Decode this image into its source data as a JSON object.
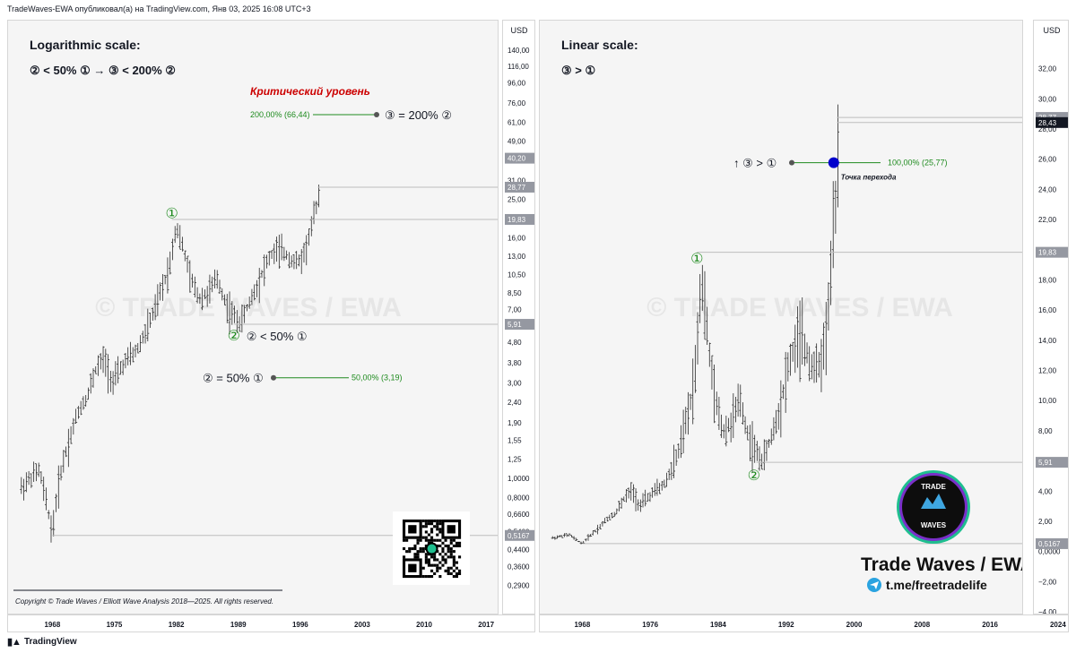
{
  "header": {
    "title": "TradeWaves-EWA опубликовал(а) на TradingView.com, Янв 03, 2025 16:08 UTC+3"
  },
  "footer": {
    "brand": "TradingView"
  },
  "watermark": "© TRADE WAVES / EWA",
  "copyright": "Copyright © Trade Waves / Elliott Wave Analysis 2018—2025. All rights reserved.",
  "logo": {
    "line1": "TRADE",
    "line2": "WAVES",
    "brand_text": "Trade Waves / EWA",
    "link": "t.me/freetradelife"
  },
  "currency": "USD",
  "colors": {
    "green": "#1e8a1e",
    "critical_red": "#cc0000",
    "price_box": "#9598a1",
    "wave_point": "#0000cc",
    "tg_blue": "#2aa3e0"
  },
  "chart_data": [
    {
      "type": "ohlc",
      "panel": "left",
      "title": "Logarithmic scale:",
      "subtitle": "② < 50% ① → ③ < 200% ②",
      "log_scale": true,
      "ylim": [
        0.25,
        160
      ],
      "xlim": [
        1963,
        2018.5
      ],
      "x_ticks": [
        "1968",
        "1975",
        "1982",
        "1989",
        "1996",
        "2003",
        "2010",
        "2017"
      ],
      "y_ticks": [
        "140,00",
        "116,00",
        "96,00",
        "76,00",
        "61,00",
        "49,00",
        "40,20",
        "31,00",
        "25,00",
        "16,00",
        "13,00",
        "10,50",
        "8,50",
        "7,00",
        "4,80",
        "3,80",
        "3,00",
        "2,40",
        "1,90",
        "1,55",
        "1,25",
        "1,0000",
        "0,8000",
        "0,6600",
        "0,5400",
        "0,4400",
        "0,3600",
        "0,2900"
      ],
      "price_tags": [
        "40,20",
        "28,77",
        "19,83",
        "5,91",
        "0,5167"
      ],
      "levels": [
        {
          "label": "200,00% (66,44)",
          "value": 66.44
        },
        {
          "label": "50,00% (3,19)",
          "value": 3.19
        }
      ],
      "annotations": {
        "critical": "Критический уровень",
        "wave3_eq": "③ = 200% ②",
        "wave1": "①",
        "wave2": "②",
        "wave2_cond": "② < 50% ①",
        "wave2_eq": "② = 50% ①"
      },
      "x": [
        1964.5,
        1965.5,
        1966.5,
        1967.2,
        1968.0,
        1969.0,
        1970.0,
        1971.0,
        1972.0,
        1973.0,
        1973.9,
        1974.8,
        1975.6,
        1976.6,
        1977.6,
        1978.6,
        1979.6,
        1980.6,
        1981.3,
        1982.0,
        1982.8,
        1983.6,
        1984.6,
        1985.6,
        1986.6,
        1987.6,
        1988.5,
        1989.3,
        1990.2,
        1991.0,
        1991.8,
        1992.6,
        1993.4,
        1994.2,
        1995.0,
        1995.8,
        1996.6,
        1997.4,
        1998.2
      ],
      "y": [
        0.9,
        1.0,
        1.1,
        0.8,
        0.52,
        1.1,
        1.6,
        2.2,
        2.6,
        3.6,
        4.0,
        3.0,
        3.5,
        4.0,
        4.4,
        5.5,
        7.0,
        9.5,
        12.0,
        18.5,
        14.0,
        10.0,
        8.0,
        8.5,
        10.0,
        7.5,
        6.5,
        6.0,
        7.5,
        9.0,
        11.0,
        13.0,
        14.0,
        13.5,
        12.5,
        12.0,
        14.0,
        19.0,
        27.5
      ]
    },
    {
      "type": "ohlc",
      "panel": "right",
      "title": "Linear scale:",
      "subtitle": "③ > ①",
      "log_scale": false,
      "ylim": [
        -4,
        34
      ],
      "xlim": [
        1963,
        2020
      ],
      "x_ticks": [
        "1968",
        "1976",
        "1984",
        "1992",
        "2000",
        "2008",
        "2016",
        "2024"
      ],
      "y_ticks": [
        "32,00",
        "30,00",
        "28,00",
        "26,00",
        "24,00",
        "22,00",
        "18,00",
        "16,00",
        "14,00",
        "12,00",
        "10,00",
        "8,00",
        "4,00",
        "2,00",
        "0,0000",
        "−2,00",
        "−4,00"
      ],
      "price_tags": [
        "28,77",
        "28,43",
        "19,83",
        "5,91",
        "0,5167"
      ],
      "levels": [
        {
          "label": "100,00% (25,77)",
          "value": 25.77
        }
      ],
      "annotations": {
        "wave3_gt": "↑ ③ > ①",
        "transition": "Точка перехода",
        "wave1": "①",
        "wave2": "②"
      },
      "x": [
        1964.5,
        1965.5,
        1966.5,
        1967.2,
        1968.0,
        1969.0,
        1970.0,
        1971.0,
        1972.0,
        1973.0,
        1973.9,
        1974.8,
        1975.6,
        1976.6,
        1977.6,
        1978.6,
        1979.6,
        1980.6,
        1981.3,
        1982.0,
        1982.8,
        1983.6,
        1984.6,
        1985.6,
        1986.6,
        1987.6,
        1988.5,
        1989.3,
        1990.2,
        1991.0,
        1991.8,
        1992.6,
        1993.4,
        1994.2,
        1995.0,
        1995.8,
        1996.6,
        1997.4,
        1998.2
      ],
      "y": [
        0.9,
        1.0,
        1.1,
        0.8,
        0.52,
        1.1,
        1.6,
        2.2,
        2.6,
        3.6,
        4.0,
        3.0,
        3.5,
        4.0,
        4.4,
        5.5,
        7.0,
        9.5,
        12.0,
        18.5,
        14.0,
        10.0,
        8.0,
        8.5,
        10.0,
        7.5,
        6.5,
        6.0,
        7.5,
        9.0,
        11.0,
        13.0,
        14.0,
        13.5,
        12.5,
        12.0,
        14.0,
        19.0,
        27.5
      ]
    }
  ]
}
